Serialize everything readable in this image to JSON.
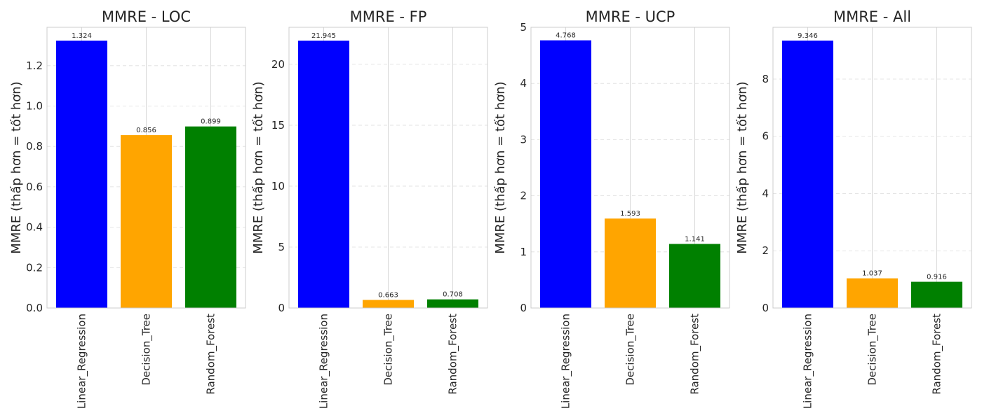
{
  "chart_data": [
    {
      "type": "bar",
      "title": "MMRE - LOC",
      "ylabel": "MMRE (thấp hơn = tốt hơn)",
      "categories": [
        "Linear_Regression",
        "Decision_Tree",
        "Random_Forest"
      ],
      "values": [
        1.324,
        0.856,
        0.899
      ],
      "value_labels": [
        "1.324",
        "0.856",
        "0.899"
      ],
      "colors": [
        "#0000ff",
        "#ffa500",
        "#008000"
      ],
      "ylim": [
        0,
        1.39
      ],
      "yticks": [
        0,
        0.2,
        0.4,
        0.6,
        0.8,
        1.0,
        1.2
      ],
      "ytick_labels": [
        "0.0",
        "0.2",
        "0.4",
        "0.6",
        "0.8",
        "1.0",
        "1.2"
      ],
      "grid": true
    },
    {
      "type": "bar",
      "title": "MMRE - FP",
      "ylabel": "MMRE (thấp hơn = tốt hơn)",
      "categories": [
        "Linear_Regression",
        "Decision_Tree",
        "Random_Forest"
      ],
      "values": [
        21.945,
        0.663,
        0.708
      ],
      "value_labels": [
        "21.945",
        "0.663",
        "0.708"
      ],
      "colors": [
        "#0000ff",
        "#ffa500",
        "#008000"
      ],
      "ylim": [
        0,
        23.04
      ],
      "yticks": [
        0,
        5,
        10,
        15,
        20
      ],
      "ytick_labels": [
        "0",
        "5",
        "10",
        "15",
        "20"
      ],
      "grid": true
    },
    {
      "type": "bar",
      "title": "MMRE - UCP",
      "ylabel": "MMRE (thấp hơn = tốt hơn)",
      "categories": [
        "Linear_Regression",
        "Decision_Tree",
        "Random_Forest"
      ],
      "values": [
        4.768,
        1.593,
        1.141
      ],
      "value_labels": [
        "4.768",
        "1.593",
        "1.141"
      ],
      "colors": [
        "#0000ff",
        "#ffa500",
        "#008000"
      ],
      "ylim": [
        0,
        5.0
      ],
      "yticks": [
        0,
        1,
        2,
        3,
        4,
        5
      ],
      "ytick_labels": [
        "0",
        "1",
        "2",
        "3",
        "4",
        "5"
      ],
      "grid": true
    },
    {
      "type": "bar",
      "title": "MMRE - All",
      "ylabel": "MMRE (thấp hơn = tốt hơn)",
      "categories": [
        "Linear_Regression",
        "Decision_Tree",
        "Random_Forest"
      ],
      "values": [
        9.346,
        1.037,
        0.916
      ],
      "value_labels": [
        "9.346",
        "1.037",
        "0.916"
      ],
      "colors": [
        "#0000ff",
        "#ffa500",
        "#008000"
      ],
      "ylim": [
        0,
        9.81
      ],
      "yticks": [
        0,
        2,
        4,
        6,
        8
      ],
      "ytick_labels": [
        "0",
        "2",
        "4",
        "6",
        "8"
      ],
      "grid": true
    }
  ]
}
